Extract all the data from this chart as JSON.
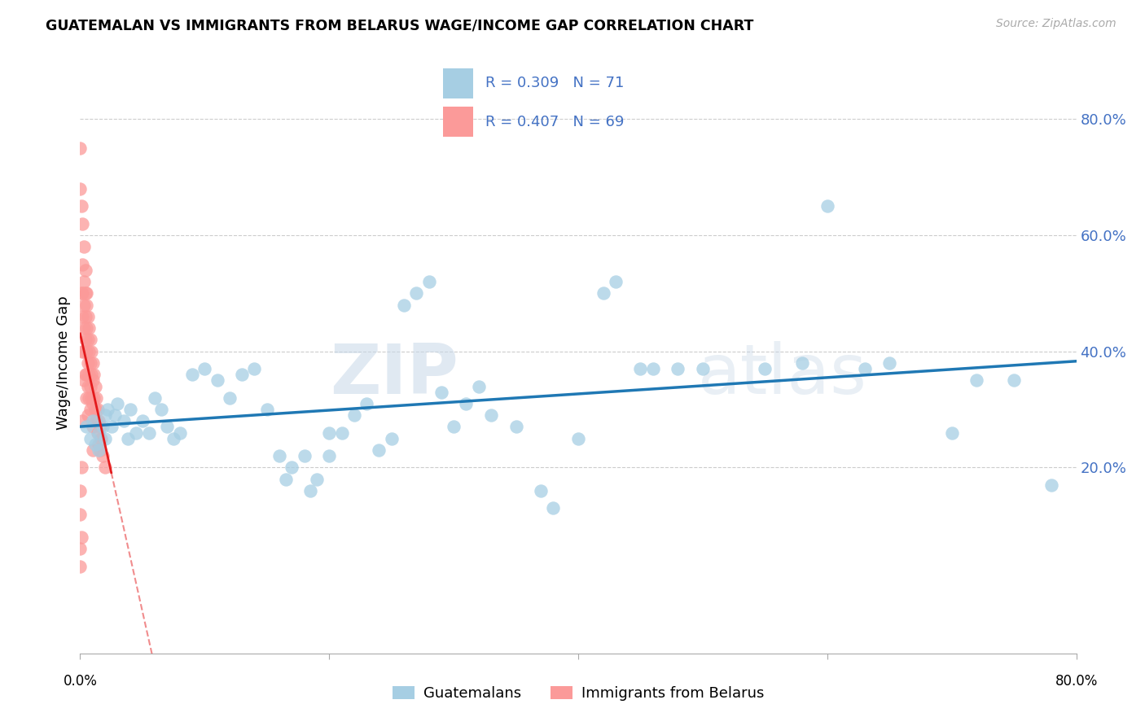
{
  "title": "GUATEMALAN VS IMMIGRANTS FROM BELARUS WAGE/INCOME GAP CORRELATION CHART",
  "source": "Source: ZipAtlas.com",
  "ylabel": "Wage/Income Gap",
  "yticks": [
    0.2,
    0.4,
    0.6,
    0.8
  ],
  "ytick_labels": [
    "20.0%",
    "40.0%",
    "60.0%",
    "80.0%"
  ],
  "xmin": 0.0,
  "xmax": 0.8,
  "ymin": -0.12,
  "ymax": 0.88,
  "blue_color": "#a6cee3",
  "pink_color": "#fb9a99",
  "blue_line_color": "#1f78b4",
  "pink_line_color": "#e31a1c",
  "blue_r": 0.309,
  "blue_n": 71,
  "pink_r": 0.407,
  "pink_n": 69,
  "blue_x": [
    0.005,
    0.008,
    0.01,
    0.012,
    0.015,
    0.015,
    0.018,
    0.02,
    0.02,
    0.022,
    0.025,
    0.028,
    0.03,
    0.035,
    0.038,
    0.04,
    0.045,
    0.05,
    0.055,
    0.06,
    0.065,
    0.07,
    0.075,
    0.08,
    0.09,
    0.1,
    0.11,
    0.12,
    0.13,
    0.14,
    0.15,
    0.16,
    0.165,
    0.17,
    0.18,
    0.185,
    0.19,
    0.2,
    0.2,
    0.21,
    0.22,
    0.23,
    0.24,
    0.25,
    0.26,
    0.27,
    0.28,
    0.29,
    0.3,
    0.31,
    0.32,
    0.33,
    0.35,
    0.37,
    0.38,
    0.4,
    0.42,
    0.43,
    0.45,
    0.46,
    0.48,
    0.5,
    0.55,
    0.58,
    0.6,
    0.63,
    0.65,
    0.7,
    0.72,
    0.75,
    0.78
  ],
  "blue_y": [
    0.27,
    0.25,
    0.28,
    0.24,
    0.26,
    0.23,
    0.27,
    0.29,
    0.25,
    0.3,
    0.27,
    0.29,
    0.31,
    0.28,
    0.25,
    0.3,
    0.26,
    0.28,
    0.26,
    0.32,
    0.3,
    0.27,
    0.25,
    0.26,
    0.36,
    0.37,
    0.35,
    0.32,
    0.36,
    0.37,
    0.3,
    0.22,
    0.18,
    0.2,
    0.22,
    0.16,
    0.18,
    0.22,
    0.26,
    0.26,
    0.29,
    0.31,
    0.23,
    0.25,
    0.48,
    0.5,
    0.52,
    0.33,
    0.27,
    0.31,
    0.34,
    0.29,
    0.27,
    0.16,
    0.13,
    0.25,
    0.5,
    0.52,
    0.37,
    0.37,
    0.37,
    0.37,
    0.37,
    0.38,
    0.65,
    0.37,
    0.38,
    0.26,
    0.35,
    0.35,
    0.17
  ],
  "pink_x": [
    0.0,
    0.0,
    0.0,
    0.0,
    0.0,
    0.0,
    0.001,
    0.001,
    0.001,
    0.001,
    0.002,
    0.002,
    0.002,
    0.002,
    0.002,
    0.002,
    0.003,
    0.003,
    0.003,
    0.003,
    0.003,
    0.003,
    0.004,
    0.004,
    0.004,
    0.004,
    0.004,
    0.005,
    0.005,
    0.005,
    0.005,
    0.005,
    0.005,
    0.006,
    0.006,
    0.006,
    0.006,
    0.006,
    0.007,
    0.007,
    0.007,
    0.007,
    0.008,
    0.008,
    0.008,
    0.008,
    0.009,
    0.009,
    0.009,
    0.01,
    0.01,
    0.01,
    0.01,
    0.01,
    0.011,
    0.011,
    0.012,
    0.012,
    0.013,
    0.013,
    0.014,
    0.014,
    0.015,
    0.015,
    0.016,
    0.016,
    0.017,
    0.018,
    0.02
  ],
  "pink_y": [
    0.75,
    0.68,
    0.16,
    0.12,
    0.06,
    0.03,
    0.65,
    0.5,
    0.2,
    0.08,
    0.62,
    0.55,
    0.5,
    0.46,
    0.4,
    0.28,
    0.58,
    0.52,
    0.48,
    0.44,
    0.4,
    0.35,
    0.54,
    0.5,
    0.46,
    0.42,
    0.36,
    0.5,
    0.48,
    0.44,
    0.4,
    0.36,
    0.32,
    0.46,
    0.42,
    0.38,
    0.34,
    0.29,
    0.44,
    0.4,
    0.36,
    0.32,
    0.42,
    0.38,
    0.34,
    0.3,
    0.4,
    0.36,
    0.32,
    0.38,
    0.35,
    0.31,
    0.27,
    0.23,
    0.36,
    0.32,
    0.34,
    0.3,
    0.32,
    0.28,
    0.3,
    0.26,
    0.28,
    0.24,
    0.27,
    0.23,
    0.25,
    0.22,
    0.2
  ],
  "watermark": "ZIPatlas",
  "legend_stat_r_blue": "R = 0.309",
  "legend_stat_n_blue": "N = 71",
  "legend_stat_r_pink": "R = 0.407",
  "legend_stat_n_pink": "N = 69"
}
